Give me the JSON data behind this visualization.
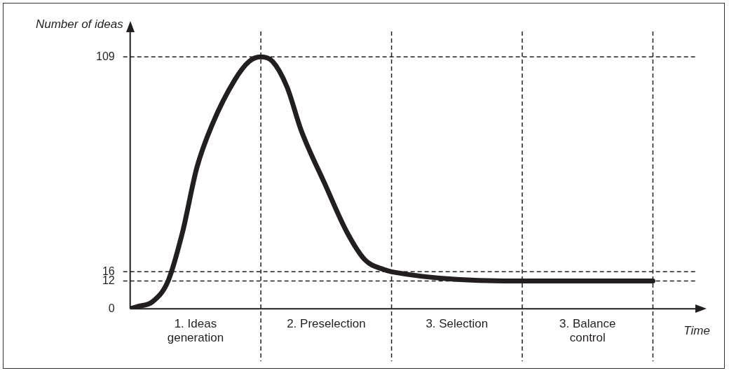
{
  "chart_data": {
    "type": "line",
    "ylabel": "Number of ideas",
    "xlabel": "Time",
    "x": [
      0,
      0.06,
      0.17,
      0.29,
      0.4,
      0.51,
      0.63,
      0.8,
      0.91,
      1,
      1.09,
      1.2,
      1.31,
      1.49,
      1.66,
      1.8,
      1.94,
      2,
      3,
      4
    ],
    "series": [
      {
        "color": "#231f20",
        "values": [
          0,
          1,
          3,
          12,
          33,
          61,
          80,
          99,
          107,
          109,
          107,
          96,
          77,
          54,
          33,
          21,
          17,
          16,
          12,
          12
        ]
      }
    ],
    "xlim": [
      0,
      4.33
    ],
    "ylim": [
      0,
      120
    ],
    "xticks": [
      {
        "value": 0.5,
        "label": "1. Ideas generation"
      },
      {
        "value": 1.5,
        "label": "2. Preselection"
      },
      {
        "value": 2.5,
        "label": "3. Selection"
      },
      {
        "value": 3.5,
        "label": "3. Balance control"
      }
    ],
    "yticks": [
      0,
      12,
      16,
      109
    ],
    "ref_lines": [
      {
        "axis": "y",
        "value": 109,
        "line_style": "dashed"
      },
      {
        "axis": "y",
        "value": 16,
        "line_style": "dashed"
      },
      {
        "axis": "y",
        "value": 12,
        "line_style": "dashed"
      },
      {
        "axis": "x",
        "value": 1,
        "line_style": "dashed"
      },
      {
        "axis": "x",
        "value": 2,
        "line_style": "dashed"
      },
      {
        "axis": "x",
        "value": 3,
        "line_style": "dashed"
      },
      {
        "axis": "x",
        "value": 4,
        "line_style": "dashed"
      }
    ],
    "grid": false,
    "legend": false,
    "marker": "none",
    "line_style": "solid"
  }
}
